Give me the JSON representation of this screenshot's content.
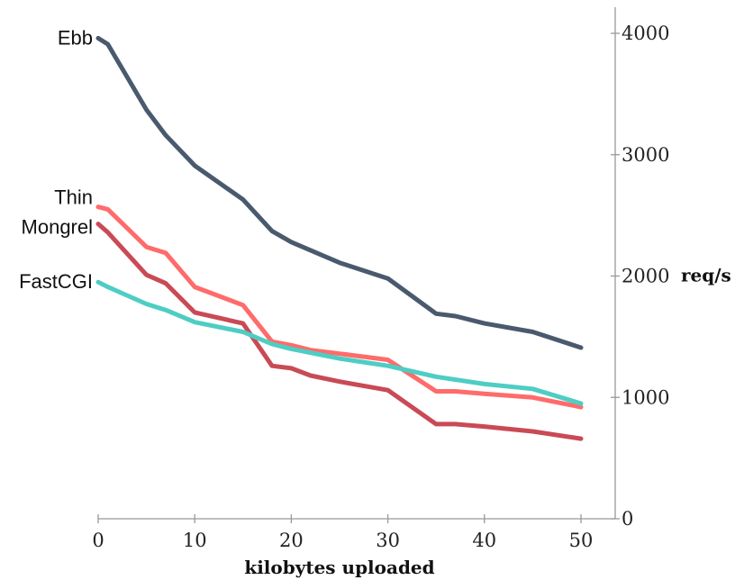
{
  "chart_data": {
    "type": "line",
    "title": "",
    "xlabel": "kilobytes uploaded",
    "ylabel": "req/s",
    "xlim": [
      0,
      50
    ],
    "ylim": [
      0,
      4000
    ],
    "x_ticks": [
      "0",
      "10",
      "20",
      "30",
      "40",
      "50"
    ],
    "y_ticks": [
      "0",
      "1000",
      "2000",
      "3000",
      "4000"
    ],
    "y_axis_side": "right",
    "grid": false,
    "legend": "inline labels at left end of each line",
    "series": [
      {
        "name": "Ebb",
        "color": "#4a5a6e",
        "points": [
          [
            0,
            3960
          ],
          [
            1,
            3910
          ],
          [
            5,
            3370
          ],
          [
            7,
            3160
          ],
          [
            10,
            2910
          ],
          [
            15,
            2630
          ],
          [
            18,
            2370
          ],
          [
            20,
            2280
          ],
          [
            25,
            2110
          ],
          [
            30,
            1980
          ],
          [
            35,
            1690
          ],
          [
            37,
            1670
          ],
          [
            40,
            1610
          ],
          [
            45,
            1540
          ],
          [
            50,
            1410
          ]
        ]
      },
      {
        "name": "Thin",
        "color": "#ff6b6b",
        "points": [
          [
            0,
            2570
          ],
          [
            1,
            2550
          ],
          [
            5,
            2240
          ],
          [
            7,
            2190
          ],
          [
            10,
            1910
          ],
          [
            15,
            1760
          ],
          [
            18,
            1460
          ],
          [
            20,
            1430
          ],
          [
            22,
            1390
          ],
          [
            25,
            1360
          ],
          [
            30,
            1310
          ],
          [
            35,
            1050
          ],
          [
            37,
            1050
          ],
          [
            40,
            1030
          ],
          [
            45,
            1000
          ],
          [
            50,
            920
          ]
        ]
      },
      {
        "name": "Mongrel",
        "color": "#c94a55",
        "points": [
          [
            0,
            2430
          ],
          [
            1,
            2360
          ],
          [
            5,
            2010
          ],
          [
            7,
            1940
          ],
          [
            10,
            1700
          ],
          [
            15,
            1610
          ],
          [
            18,
            1260
          ],
          [
            20,
            1240
          ],
          [
            22,
            1180
          ],
          [
            25,
            1130
          ],
          [
            30,
            1060
          ],
          [
            35,
            780
          ],
          [
            37,
            780
          ],
          [
            40,
            760
          ],
          [
            45,
            720
          ],
          [
            50,
            660
          ]
        ]
      },
      {
        "name": "FastCGI",
        "color": "#4ecdc4",
        "points": [
          [
            0,
            1950
          ],
          [
            1,
            1910
          ],
          [
            5,
            1770
          ],
          [
            7,
            1720
          ],
          [
            10,
            1620
          ],
          [
            15,
            1540
          ],
          [
            18,
            1440
          ],
          [
            20,
            1400
          ],
          [
            25,
            1320
          ],
          [
            30,
            1260
          ],
          [
            35,
            1170
          ],
          [
            40,
            1110
          ],
          [
            45,
            1070
          ],
          [
            50,
            950
          ]
        ]
      }
    ]
  }
}
